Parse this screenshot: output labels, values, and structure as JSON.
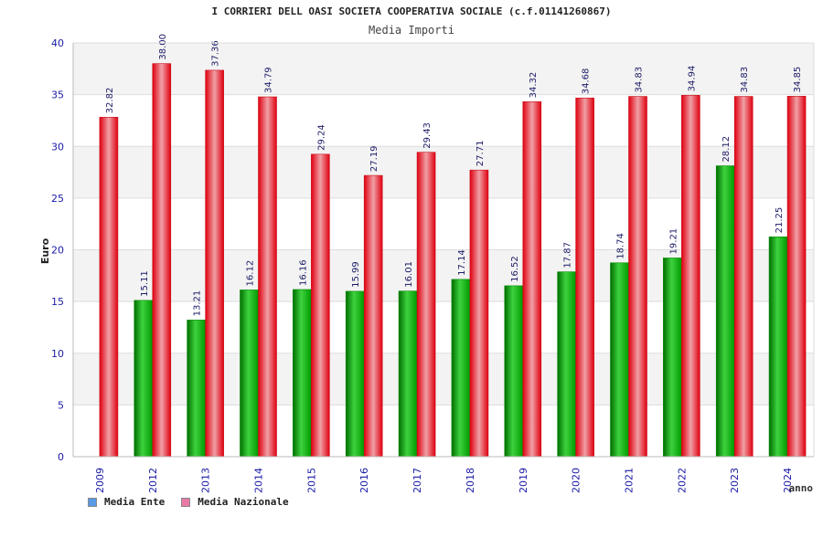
{
  "header": {
    "title": "I CORRIERI DELL OASI SOCIETA COOPERATIVA SOCIALE (c.f.01141260867)",
    "subtitle": "Media Importi"
  },
  "colors": {
    "ente": "#00b400",
    "nazionale": "#e8202a",
    "ente_legend": "#5a9be6",
    "nazionale_legend": "#e87aa8",
    "axis_text": "#1a1aa6"
  },
  "chart_data": {
    "type": "bar",
    "title": "I CORRIERI DELL OASI SOCIETA COOPERATIVA SOCIALE (c.f.01141260867)",
    "subtitle": "Media Importi",
    "xlabel": "anno",
    "ylabel": "Euro",
    "ylim": [
      0,
      40
    ],
    "yticks": [
      0,
      5,
      10,
      15,
      20,
      25,
      30,
      35,
      40
    ],
    "grid": true,
    "legend_position": "bottom-left",
    "categories": [
      "2009",
      "2012",
      "2013",
      "2014",
      "2015",
      "2016",
      "2017",
      "2018",
      "2019",
      "2020",
      "2021",
      "2022",
      "2023",
      "2024"
    ],
    "series": [
      {
        "name": "Media Ente",
        "values": [
          null,
          15.11,
          13.21,
          16.12,
          16.16,
          15.99,
          16.01,
          17.14,
          16.52,
          17.87,
          18.74,
          19.21,
          28.12,
          21.25
        ]
      },
      {
        "name": "Media Nazionale",
        "values": [
          32.82,
          38.0,
          37.36,
          34.79,
          29.24,
          27.19,
          29.43,
          27.71,
          34.32,
          34.68,
          34.83,
          34.94,
          34.83,
          34.85
        ]
      }
    ]
  },
  "legend": {
    "ente_label": "Media Ente",
    "nazionale_label": "Media Nazionale"
  }
}
